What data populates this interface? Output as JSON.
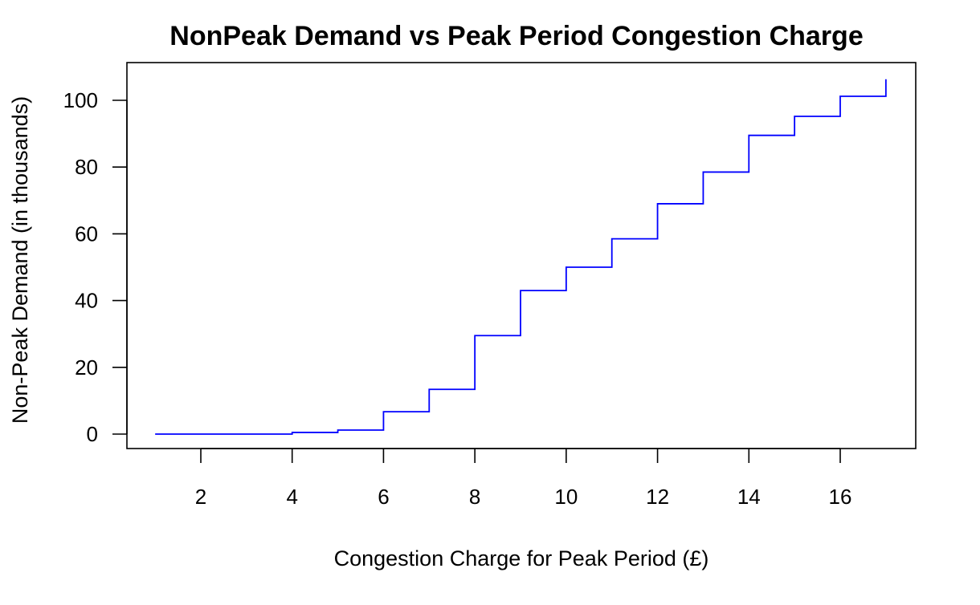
{
  "chart_data": {
    "type": "line",
    "style": "step",
    "title": "NonPeak Demand vs Peak Period Congestion Charge",
    "xlabel": "Congestion Charge  for Peak Period (£)",
    "ylabel": "Non-Peak Demand (in thousands)",
    "xlim": [
      1,
      17
    ],
    "ylim": [
      0,
      106
    ],
    "xticks": [
      2,
      4,
      6,
      8,
      10,
      12,
      14,
      16
    ],
    "yticks": [
      0,
      20,
      40,
      60,
      80,
      100
    ],
    "grid": false,
    "legend": "none",
    "series": [
      {
        "color": "#0000ff",
        "x": [
          1,
          2,
          3,
          4,
          5,
          6,
          7,
          8,
          9,
          10,
          11,
          12,
          13,
          14,
          15,
          16,
          17
        ],
        "y": [
          0,
          0,
          0,
          0.5,
          1.2,
          6.7,
          13.4,
          29.5,
          43.0,
          50.0,
          58.5,
          69.0,
          78.5,
          89.5,
          95.2,
          101.2,
          106.3
        ]
      }
    ]
  }
}
